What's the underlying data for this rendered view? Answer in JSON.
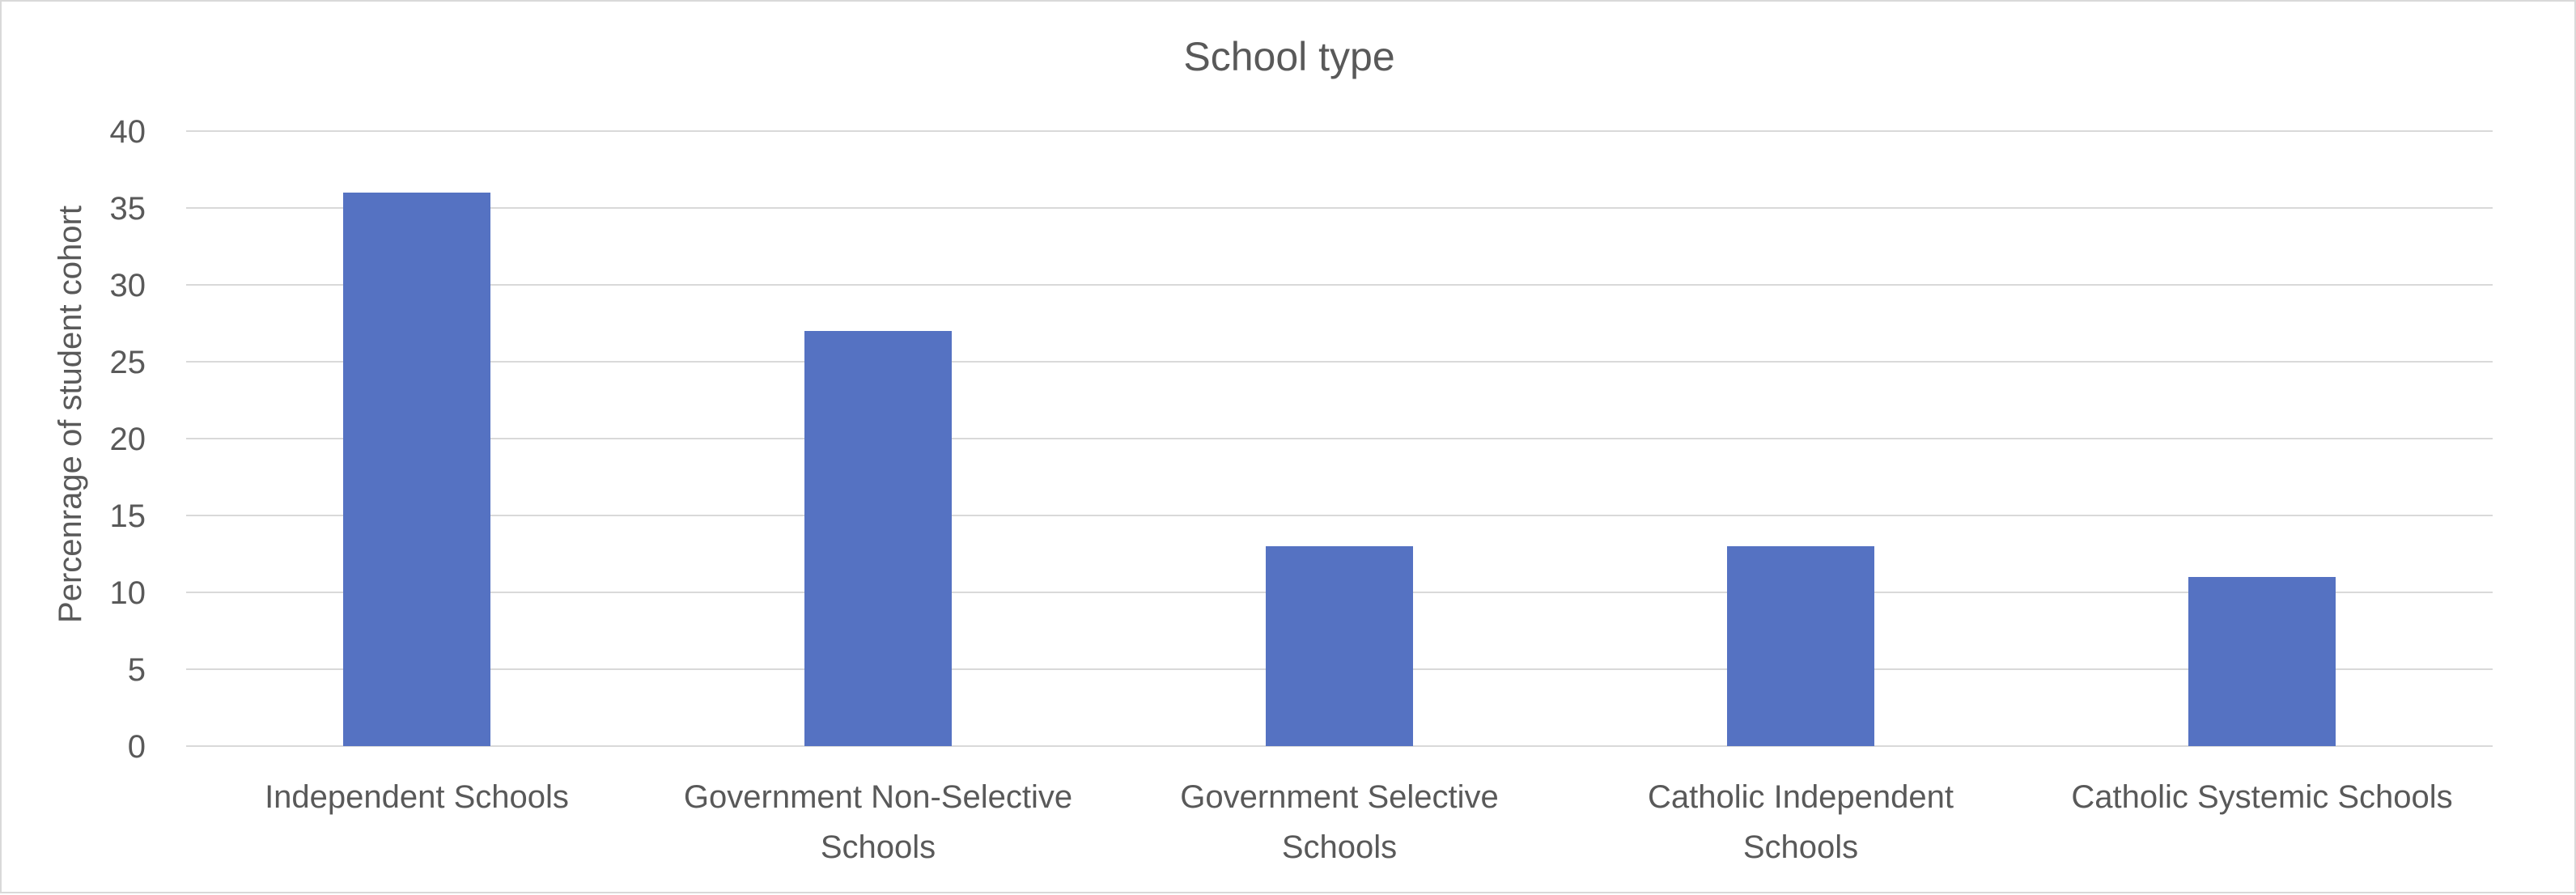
{
  "chart_data": {
    "type": "bar",
    "title": "School type",
    "xlabel": "",
    "ylabel": "Percenrage of student cohort",
    "ylim": [
      0,
      40
    ],
    "yticks": [
      0,
      5,
      10,
      15,
      20,
      25,
      30,
      35,
      40
    ],
    "grid": true,
    "legend": "none",
    "bar_color": "#5572C2",
    "categories": [
      [
        "Independent Schools"
      ],
      [
        "Government Non-Selective",
        "Schools"
      ],
      [
        "Government Selective",
        "Schools"
      ],
      [
        "Catholic Independent",
        "Schools"
      ],
      [
        "Catholic Systemic Schools"
      ]
    ],
    "values": [
      36,
      27,
      13,
      13,
      11
    ]
  }
}
